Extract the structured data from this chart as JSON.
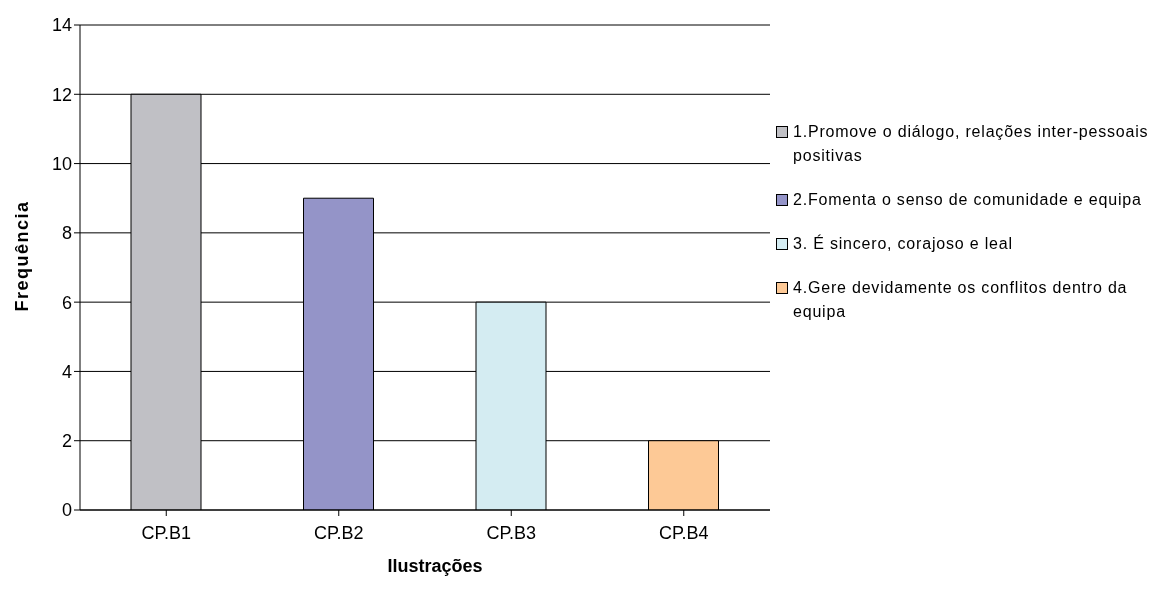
{
  "chart_data": {
    "type": "bar",
    "xlabel": "Ilustrações",
    "ylabel": "Frequência",
    "categories": [
      "CP.B1",
      "CP.B2",
      "CP.B3",
      "CP.B4"
    ],
    "series": [
      {
        "name": "1.Promove o diálogo, relações inter-pessoais positivas",
        "color": "#c0c0c5",
        "values": [
          12,
          null,
          null,
          null
        ]
      },
      {
        "name": "2.Fomenta o senso de comunidade e equipa",
        "color": "#9494c8",
        "values": [
          null,
          9,
          null,
          null
        ]
      },
      {
        "name": "3. É sincero, corajoso e leal",
        "color": "#d4ecf2",
        "values": [
          null,
          null,
          6,
          null
        ]
      },
      {
        "name": "4.Gere devidamente os conflitos dentro da equipa",
        "color": "#fdc996",
        "values": [
          null,
          null,
          null,
          2
        ]
      }
    ],
    "stacked": true,
    "ylim": [
      0,
      14
    ],
    "yticks": [
      0,
      2,
      4,
      6,
      8,
      10,
      12,
      14
    ],
    "grid": "y",
    "legend": "right"
  }
}
